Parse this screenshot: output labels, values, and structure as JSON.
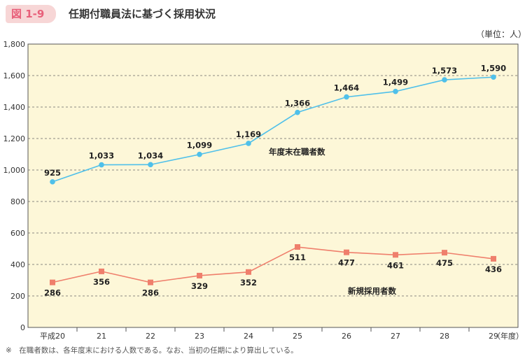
{
  "header": {
    "figure_number": "図 1-9",
    "title": "任期付職員法に基づく採用状況",
    "unit": "（単位：人）"
  },
  "footnote": "※　在職者数は、各年度末における人数である。なお、当初の任期により算出している。",
  "chart_data": {
    "type": "line",
    "title": "任期付職員法に基づく採用状況",
    "categories": [
      "平成20",
      "21",
      "22",
      "23",
      "24",
      "25",
      "26",
      "27",
      "28",
      "29"
    ],
    "x_axis_suffix": "（年度）",
    "ylim": [
      0,
      1800
    ],
    "yticks": [
      0,
      200,
      400,
      600,
      800,
      1000,
      1200,
      1400,
      1600,
      1800
    ],
    "ytick_labels": [
      "0",
      "200",
      "400",
      "600",
      "800",
      "1,000",
      "1,200",
      "1,400",
      "1,600",
      "1,800"
    ],
    "grid": true,
    "plot_background": "#fdf7d8",
    "series": [
      {
        "name": "年度末在職者数",
        "color": "#4fc0ea",
        "marker": "circle",
        "values": [
          925,
          1033,
          1034,
          1099,
          1169,
          1366,
          1464,
          1499,
          1573,
          1590
        ],
        "value_labels": [
          "925",
          "1,033",
          "1,034",
          "1,099",
          "1,169",
          "1,366",
          "1,464",
          "1,499",
          "1,573",
          "1,590"
        ],
        "label_position": "above"
      },
      {
        "name": "新規採用者数",
        "color": "#ef7f6c",
        "marker": "square",
        "values": [
          286,
          356,
          286,
          329,
          352,
          511,
          477,
          461,
          475,
          436
        ],
        "value_labels": [
          "286",
          "356",
          "286",
          "329",
          "352",
          "511",
          "477",
          "461",
          "475",
          "436"
        ],
        "label_position": "below"
      }
    ]
  }
}
